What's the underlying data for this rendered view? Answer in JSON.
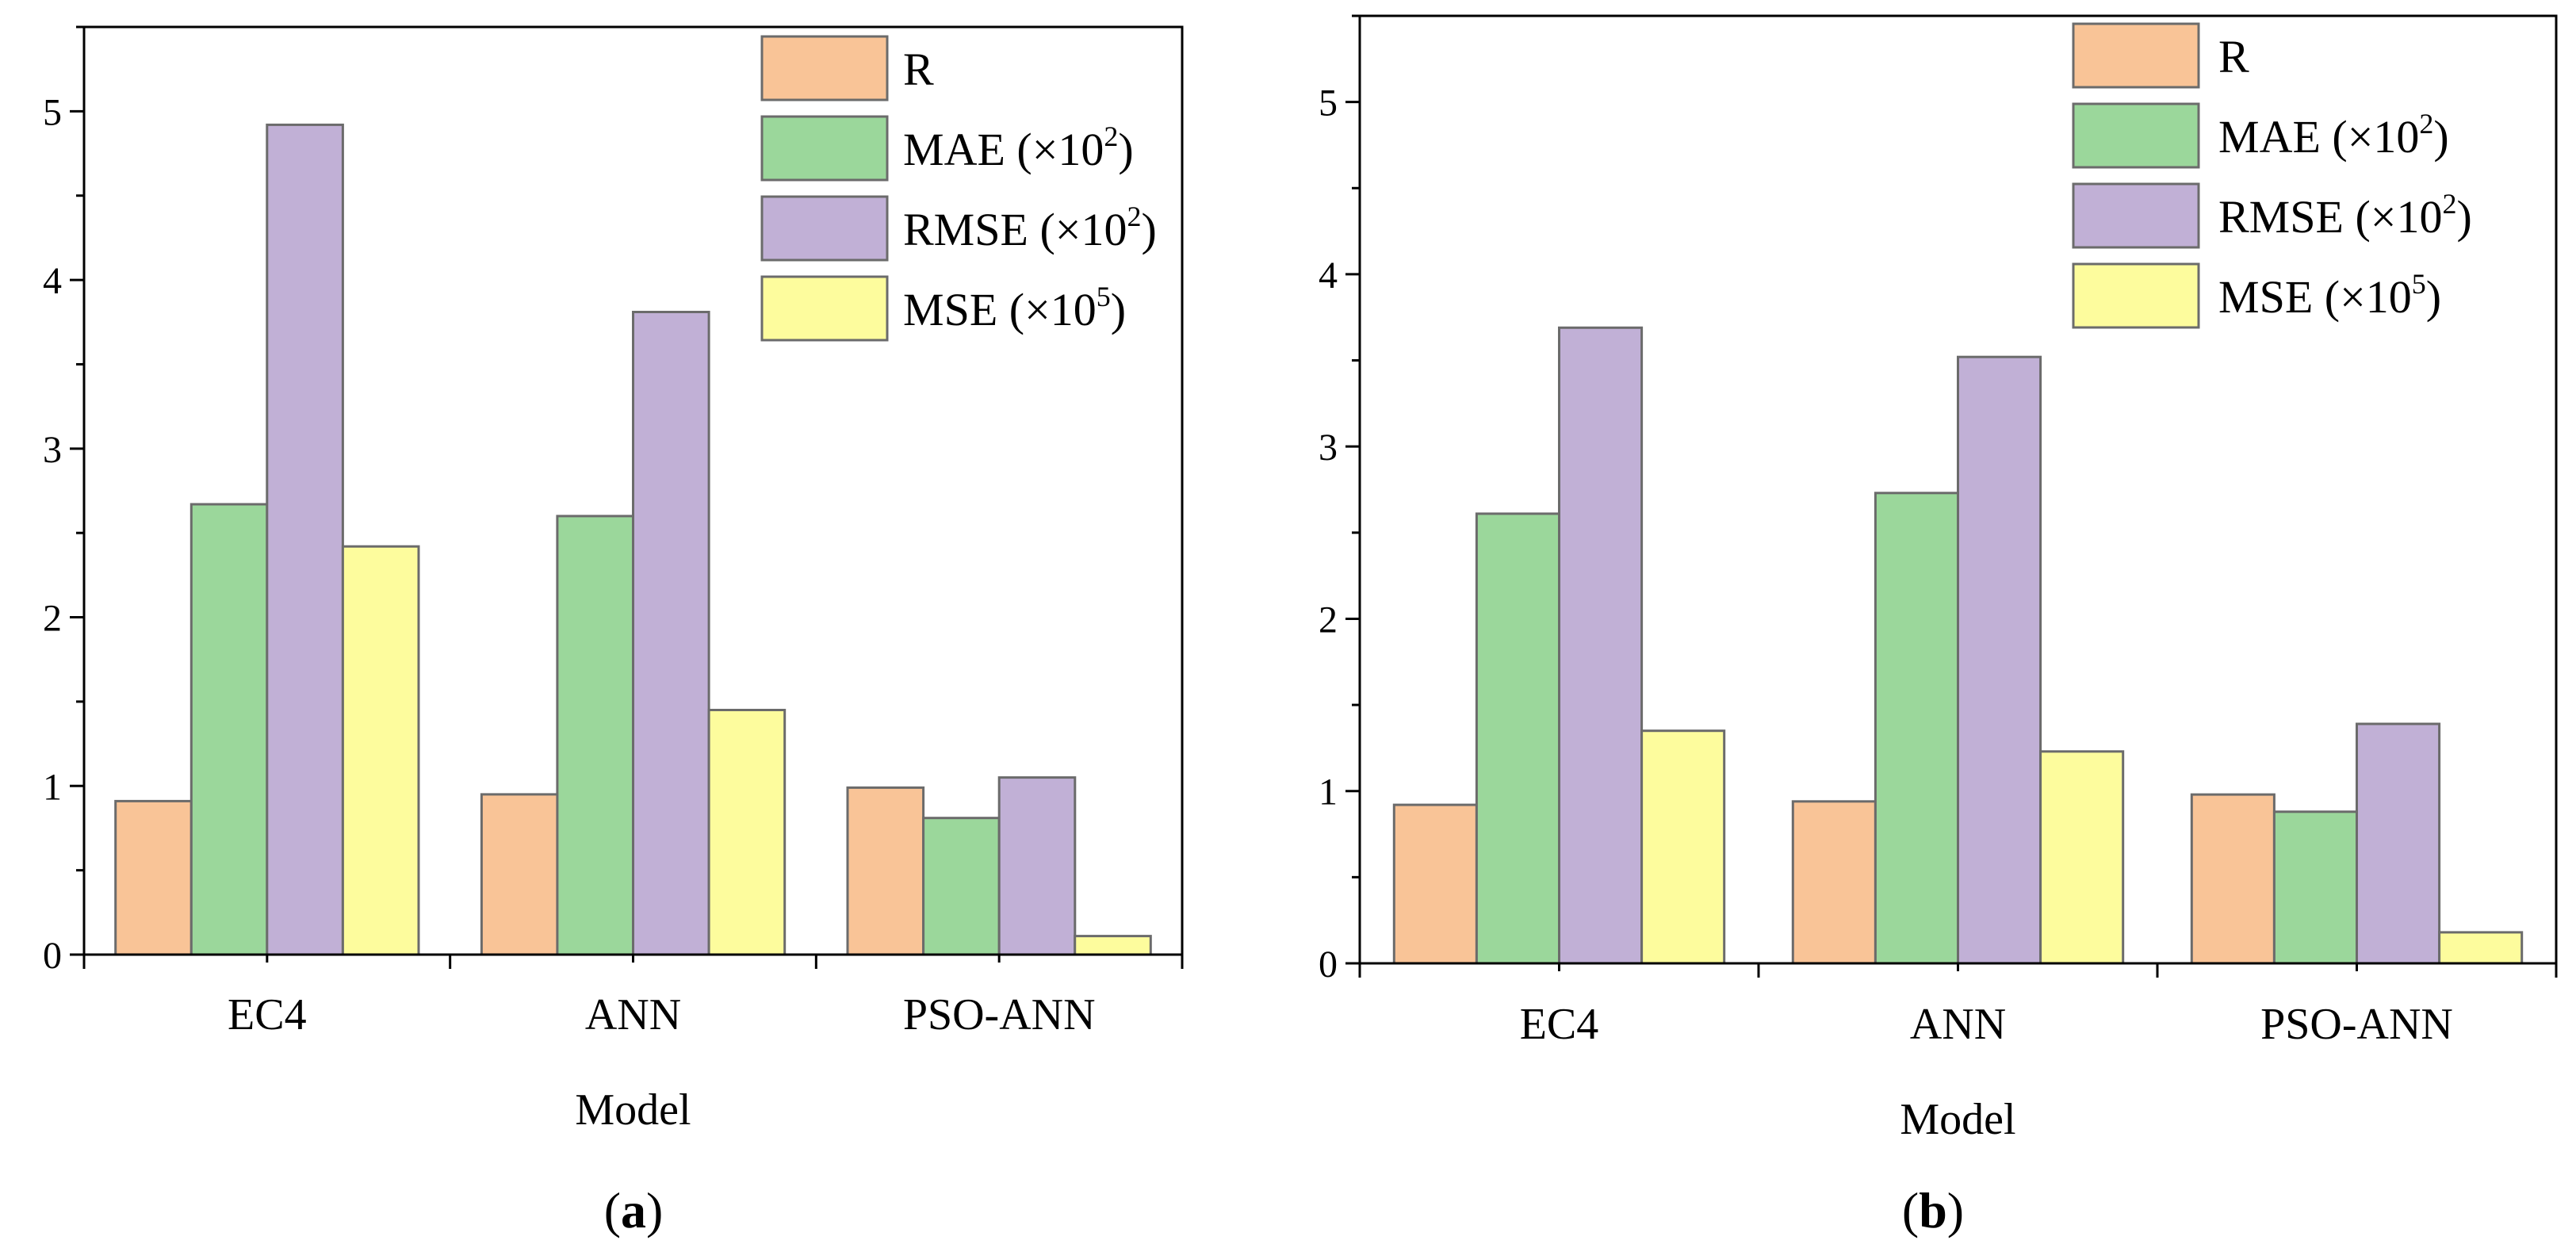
{
  "figure": {
    "panels": [
      "a",
      "b"
    ]
  },
  "chart_data": [
    {
      "type": "bar",
      "panel": "a",
      "caption_letter": "a",
      "categories": [
        "EC4",
        "ANN",
        "PSO-ANN"
      ],
      "series": [
        {
          "name": "R",
          "legend_base": "R",
          "legend_sup": "",
          "legend_tail": "",
          "color": "#f9c497",
          "values": [
            0.91,
            0.95,
            0.99
          ]
        },
        {
          "name": "MAE (×10^2)",
          "legend_base": "MAE (×10",
          "legend_sup": "2",
          "legend_tail": ")",
          "color": "#9bd79b",
          "values": [
            2.67,
            2.6,
            0.81
          ]
        },
        {
          "name": "RMSE (×10^2)",
          "legend_base": "RMSE (×10",
          "legend_sup": "2",
          "legend_tail": ")",
          "color": "#c1b0d6",
          "values": [
            4.92,
            3.81,
            1.05
          ]
        },
        {
          "name": "MSE (×10^5)",
          "legend_base": "MSE (×10",
          "legend_sup": "5",
          "legend_tail": ")",
          "color": "#fdfc9d",
          "values": [
            2.42,
            1.45,
            0.11
          ]
        }
      ],
      "ylim": [
        0,
        5.5
      ],
      "yticks": [
        "0",
        "1",
        "2",
        "3",
        "4",
        "5"
      ],
      "ytick_values": [
        0,
        1,
        2,
        3,
        4,
        5
      ],
      "xlabel": "Model",
      "ylabel": "",
      "legend_position": "top-right",
      "grid": false
    },
    {
      "type": "bar",
      "panel": "b",
      "caption_letter": "b",
      "categories": [
        "EC4",
        "ANN",
        "PSO-ANN"
      ],
      "series": [
        {
          "name": "R",
          "legend_base": "R",
          "legend_sup": "",
          "legend_tail": "",
          "color": "#f9c497",
          "values": [
            0.92,
            0.94,
            0.98
          ]
        },
        {
          "name": "MAE (×10^2)",
          "legend_base": "MAE (×10",
          "legend_sup": "2",
          "legend_tail": ")",
          "color": "#9bd79b",
          "values": [
            2.61,
            2.73,
            0.88
          ]
        },
        {
          "name": "RMSE (×10^2)",
          "legend_base": "RMSE (×10",
          "legend_sup": "2",
          "legend_tail": ")",
          "color": "#c1b0d6",
          "values": [
            3.69,
            3.52,
            1.39
          ]
        },
        {
          "name": "MSE (×10^5)",
          "legend_base": "MSE (×10",
          "legend_sup": "5",
          "legend_tail": ")",
          "color": "#fdfc9d",
          "values": [
            1.35,
            1.23,
            0.18
          ]
        }
      ],
      "ylim": [
        0,
        5.5
      ],
      "yticks": [
        "0",
        "1",
        "2",
        "3",
        "4",
        "5"
      ],
      "ytick_values": [
        0,
        1,
        2,
        3,
        4,
        5
      ],
      "xlabel": "Model",
      "ylabel": "",
      "legend_position": "top-right",
      "grid": false
    }
  ]
}
